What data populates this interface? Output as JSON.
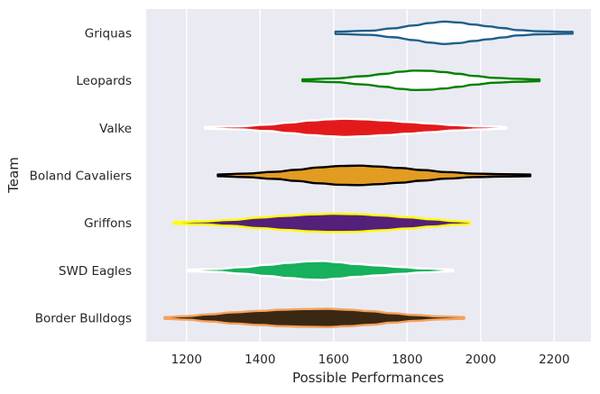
{
  "chart_data": {
    "type": "violin",
    "orientation": "horizontal",
    "xlabel": "Possible Performances",
    "ylabel": "Team",
    "xlim": [
      1090,
      2300
    ],
    "xticks": [
      1200,
      1400,
      1600,
      1800,
      2000,
      2200
    ],
    "grid": true,
    "legend": "none",
    "background_color": "#eaeaf2",
    "series": [
      {
        "name": "Griquas",
        "fill": "#ffffff",
        "stroke": "#1f5f8b",
        "range": [
          1605,
          2250
        ],
        "profile": [
          [
            1605,
            0.04
          ],
          [
            1700,
            0.07
          ],
          [
            1760,
            0.15
          ],
          [
            1820,
            0.25
          ],
          [
            1860,
            0.33
          ],
          [
            1900,
            0.38
          ],
          [
            1940,
            0.35
          ],
          [
            1980,
            0.28
          ],
          [
            2020,
            0.22
          ],
          [
            2060,
            0.16
          ],
          [
            2100,
            0.09
          ],
          [
            2160,
            0.05
          ],
          [
            2250,
            0.03
          ]
        ]
      },
      {
        "name": "Leopards",
        "fill": "#ffffff",
        "stroke": "#008000",
        "range": [
          1515,
          2160
        ],
        "profile": [
          [
            1515,
            0.03
          ],
          [
            1600,
            0.06
          ],
          [
            1680,
            0.14
          ],
          [
            1740,
            0.22
          ],
          [
            1780,
            0.29
          ],
          [
            1820,
            0.33
          ],
          [
            1860,
            0.32
          ],
          [
            1900,
            0.28
          ],
          [
            1940,
            0.22
          ],
          [
            1980,
            0.15
          ],
          [
            2040,
            0.08
          ],
          [
            2100,
            0.05
          ],
          [
            2160,
            0.03
          ]
        ]
      },
      {
        "name": "Valke",
        "fill": "#e31a1c",
        "stroke": "#ffffff",
        "range": [
          1250,
          2070
        ],
        "profile": [
          [
            1250,
            0.03
          ],
          [
            1340,
            0.05
          ],
          [
            1420,
            0.11
          ],
          [
            1480,
            0.18
          ],
          [
            1540,
            0.25
          ],
          [
            1590,
            0.29
          ],
          [
            1630,
            0.31
          ],
          [
            1680,
            0.29
          ],
          [
            1740,
            0.25
          ],
          [
            1800,
            0.2
          ],
          [
            1860,
            0.15
          ],
          [
            1930,
            0.09
          ],
          [
            2000,
            0.05
          ],
          [
            2070,
            0.03
          ]
        ]
      },
      {
        "name": "Boland Cavaliers",
        "fill": "#e39c22",
        "stroke": "#000000",
        "range": [
          1285,
          2135
        ],
        "profile": [
          [
            1285,
            0.03
          ],
          [
            1360,
            0.06
          ],
          [
            1440,
            0.12
          ],
          [
            1500,
            0.19
          ],
          [
            1560,
            0.27
          ],
          [
            1620,
            0.32
          ],
          [
            1670,
            0.33
          ],
          [
            1720,
            0.3
          ],
          [
            1780,
            0.25
          ],
          [
            1840,
            0.18
          ],
          [
            1910,
            0.11
          ],
          [
            1980,
            0.06
          ],
          [
            2060,
            0.04
          ],
          [
            2135,
            0.03
          ]
        ]
      },
      {
        "name": "Griffons",
        "fill": "#542079",
        "stroke": "#ffff00",
        "range": [
          1165,
          1970
        ],
        "profile": [
          [
            1165,
            0.03
          ],
          [
            1240,
            0.05
          ],
          [
            1320,
            0.1
          ],
          [
            1400,
            0.18
          ],
          [
            1470,
            0.24
          ],
          [
            1540,
            0.29
          ],
          [
            1600,
            0.31
          ],
          [
            1660,
            0.3
          ],
          [
            1730,
            0.25
          ],
          [
            1800,
            0.19
          ],
          [
            1870,
            0.12
          ],
          [
            1930,
            0.06
          ],
          [
            1970,
            0.04
          ]
        ]
      },
      {
        "name": "SWD Eagles",
        "fill": "#17b05c",
        "stroke": "#ffffff",
        "range": [
          1205,
          1925
        ],
        "profile": [
          [
            1205,
            0.03
          ],
          [
            1280,
            0.05
          ],
          [
            1350,
            0.11
          ],
          [
            1420,
            0.19
          ],
          [
            1480,
            0.26
          ],
          [
            1530,
            0.31
          ],
          [
            1570,
            0.32
          ],
          [
            1610,
            0.28
          ],
          [
            1660,
            0.22
          ],
          [
            1720,
            0.17
          ],
          [
            1780,
            0.12
          ],
          [
            1840,
            0.07
          ],
          [
            1925,
            0.03
          ]
        ]
      },
      {
        "name": "Border Bulldogs",
        "fill": "#3b2812",
        "stroke": "#f4a15d",
        "range": [
          1140,
          1955
        ],
        "profile": [
          [
            1140,
            0.03
          ],
          [
            1200,
            0.06
          ],
          [
            1260,
            0.12
          ],
          [
            1330,
            0.19
          ],
          [
            1400,
            0.24
          ],
          [
            1460,
            0.28
          ],
          [
            1520,
            0.3
          ],
          [
            1580,
            0.31
          ],
          [
            1640,
            0.28
          ],
          [
            1700,
            0.23
          ],
          [
            1760,
            0.16
          ],
          [
            1820,
            0.1
          ],
          [
            1890,
            0.05
          ],
          [
            1955,
            0.03
          ]
        ]
      }
    ]
  }
}
